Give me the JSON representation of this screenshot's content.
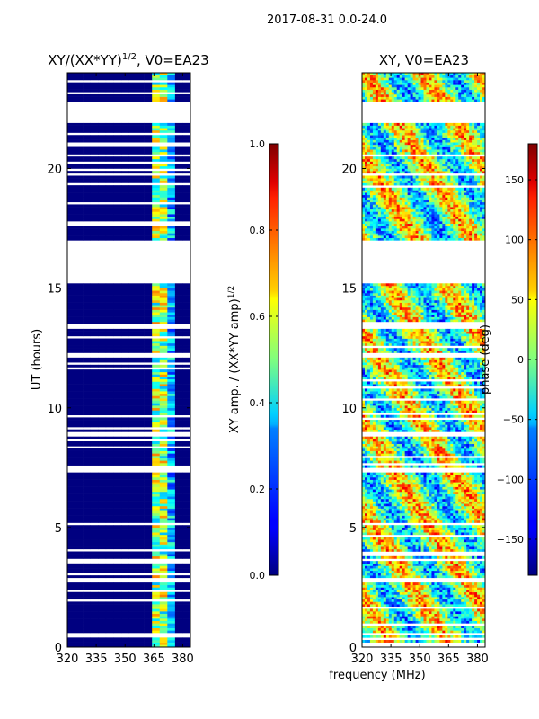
{
  "figure": {
    "suptitle": "2017-08-31 0.0-24.0",
    "shared_xlabel": "frequency (MHz)"
  },
  "colors": {
    "jet_low": "#00007f",
    "jet_mid": "#7fff7f",
    "jet_high": "#7f0000",
    "gap": "#ffffff"
  },
  "chart_data": [
    {
      "type": "heatmap",
      "title": "XY/(XX*YY)^1/2, V0=EA23",
      "title_main": "XY/(XX*YY)",
      "title_exp": "1/2",
      "title_suffix": ", V0=EA23",
      "xlabel": "",
      "ylabel": "UT (hours)",
      "xlim": [
        320,
        384
      ],
      "ylim": [
        0,
        24
      ],
      "xticks": [
        320,
        335,
        350,
        365,
        380
      ],
      "yticks": [
        0,
        5,
        10,
        15,
        20
      ],
      "colorbar": {
        "label": "XY amp. / (XX*YY amp)^1/2",
        "label_main": "XY amp. / (XX*YY amp)",
        "label_exp": "1/2",
        "range": [
          0.0,
          1.0
        ],
        "ticks": [
          "0.0",
          "0.2",
          "0.4",
          "0.6",
          "0.8",
          "1.0"
        ],
        "colormap": "jet"
      },
      "data_gaps_hours": [
        [
          0.5,
          0.6
        ],
        [
          15.2,
          17.0
        ],
        [
          21.9,
          22.8
        ],
        [
          13.3,
          13.5
        ],
        [
          12.1,
          12.25
        ],
        [
          8.8,
          8.95
        ],
        [
          7.3,
          7.45
        ],
        [
          5.1,
          5.2
        ],
        [
          3.6,
          3.7
        ],
        [
          2.75,
          2.85
        ]
      ],
      "description_values": {
        "typical_outside_365MHz": 0.0,
        "band_363_378MHz_range": [
          0.2,
          0.9
        ]
      }
    },
    {
      "type": "heatmap",
      "title": "XY, V0=EA23",
      "xlabel": "",
      "ylabel": "",
      "xlim": [
        320,
        384
      ],
      "ylim": [
        0,
        24
      ],
      "xticks": [
        320,
        335,
        350,
        365,
        380
      ],
      "yticks": [
        0,
        5,
        10,
        15,
        20
      ],
      "colorbar": {
        "label": "phase (deg)",
        "range": [
          -180,
          180
        ],
        "ticks": [
          "−150",
          "−100",
          "−50",
          "0",
          "50",
          "100",
          "150"
        ],
        "tick_values": [
          -150,
          -100,
          -50,
          0,
          50,
          100,
          150
        ],
        "colormap": "jet"
      },
      "data_gaps_hours": [
        [
          0.5,
          0.6
        ],
        [
          15.2,
          17.0
        ],
        [
          21.9,
          22.8
        ],
        [
          13.3,
          13.5
        ],
        [
          12.1,
          12.25
        ],
        [
          8.8,
          8.95
        ],
        [
          7.3,
          7.45
        ],
        [
          5.1,
          5.2
        ],
        [
          3.6,
          3.7
        ],
        [
          2.75,
          2.85
        ]
      ]
    }
  ]
}
